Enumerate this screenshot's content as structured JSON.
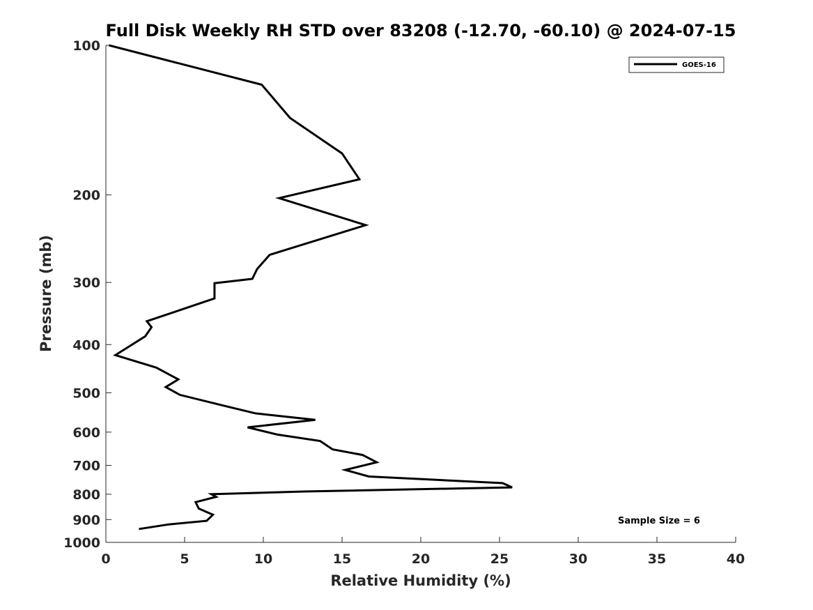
{
  "chart_data": {
    "type": "line",
    "title": "Full Disk Weekly RH STD over 83208 (-12.70, -60.10) @ 2024-07-15",
    "xlabel": "Relative Humidity (%)",
    "ylabel": "Pressure (mb)",
    "xlim": [
      0,
      40
    ],
    "ylim": [
      100,
      1000
    ],
    "y_scale": "log",
    "y_reversed": true,
    "x_ticks": [
      "0",
      "5",
      "10",
      "15",
      "20",
      "25",
      "30",
      "35",
      "40"
    ],
    "y_ticks": [
      "100",
      "200",
      "300",
      "400",
      "500",
      "600",
      "700",
      "800",
      "900",
      "1000"
    ],
    "grid": false,
    "legend_position": "top-right",
    "series": [
      {
        "name": "GOES-16",
        "color": "#000000",
        "x": [
          0.2,
          9.9,
          11.7,
          15.0,
          16.1,
          11.0,
          16.5,
          10.4,
          9.6,
          9.3,
          6.9,
          6.9,
          2.6,
          2.9,
          2.5,
          0.6,
          3.2,
          4.6,
          3.8,
          4.7,
          7.4,
          9.5,
          13.3,
          9.0,
          10.9,
          13.6,
          14.4,
          16.3,
          17.2,
          15.2,
          16.7,
          25.2,
          25.8,
          12.6,
          6.7,
          7.0,
          5.7,
          5.9,
          6.8,
          6.4,
          4.0,
          2.1
        ],
        "y": [
          100,
          120,
          140,
          165,
          186,
          203,
          230,
          264,
          282,
          295,
          301,
          323,
          359,
          369,
          385,
          420,
          445,
          470,
          487,
          505,
          530,
          550,
          567,
          587,
          607,
          625,
          650,
          667,
          690,
          715,
          737,
          760,
          775,
          790,
          800,
          810,
          830,
          855,
          880,
          905,
          920,
          940
        ]
      }
    ],
    "annotation": "Sample Size = 6"
  }
}
